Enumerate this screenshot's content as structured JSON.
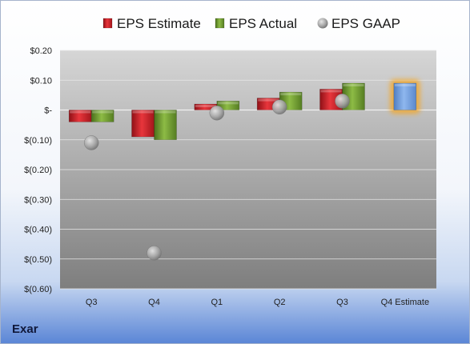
{
  "company": "Exar",
  "chart_data": {
    "type": "bar",
    "categories": [
      "Q3",
      "Q4",
      "Q1",
      "Q2",
      "Q3",
      "Q4 Estimate"
    ],
    "series": [
      {
        "name": "EPS Estimate",
        "color": "#cc1f25",
        "values": [
          -0.04,
          -0.09,
          0.02,
          0.04,
          0.07,
          null
        ]
      },
      {
        "name": "EPS Actual",
        "color": "#6b9a2c",
        "values": [
          -0.04,
          -0.1,
          0.03,
          0.06,
          0.09,
          0.09
        ]
      },
      {
        "name": "EPS GAAP",
        "color": "#a9a9a9",
        "marker": "circle",
        "values": [
          -0.11,
          -0.48,
          -0.01,
          0.01,
          0.03,
          null
        ]
      }
    ],
    "highlight": {
      "category_index": 5,
      "color": "#7aa7e3",
      "glow": "#f5a623"
    },
    "ylim": [
      -0.6,
      0.2
    ],
    "yticks": [
      0.2,
      0.1,
      0,
      -0.1,
      -0.2,
      -0.3,
      -0.4,
      -0.5,
      -0.6
    ],
    "ytick_labels": [
      "$0.20",
      "$0.10",
      "$-",
      "$(0.10)",
      "$(0.20)",
      "$(0.30)",
      "$(0.40)",
      "$(0.50)",
      "$(0.60)"
    ],
    "grid": true,
    "legend_position": "top"
  }
}
